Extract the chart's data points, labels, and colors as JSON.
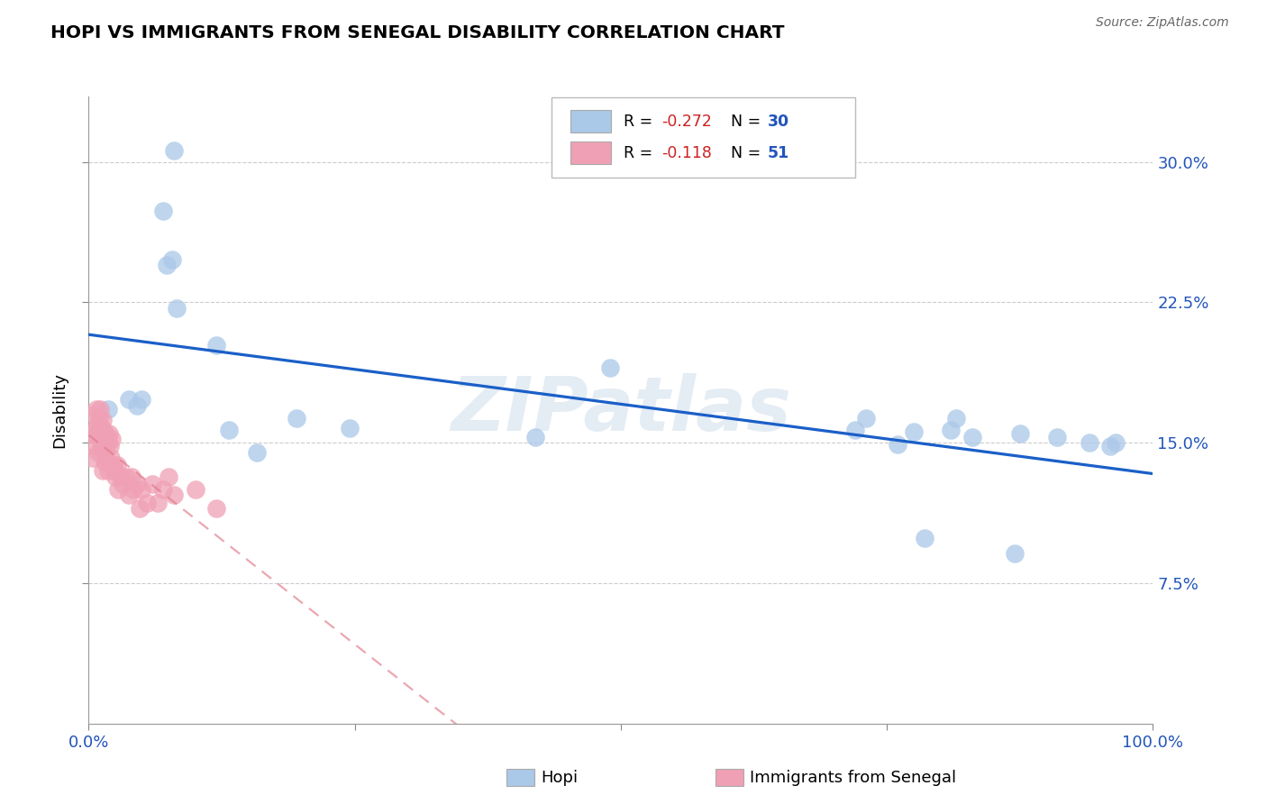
{
  "title": "HOPI VS IMMIGRANTS FROM SENEGAL DISABILITY CORRELATION CHART",
  "source": "Source: ZipAtlas.com",
  "ylabel": "Disability",
  "xlim": [
    0,
    1.0
  ],
  "ylim": [
    0,
    0.335
  ],
  "yticks": [
    0.075,
    0.15,
    0.225,
    0.3
  ],
  "ytick_labels": [
    "7.5%",
    "15.0%",
    "22.5%",
    "30.0%"
  ],
  "xticks": [
    0.0,
    0.25,
    0.5,
    0.75,
    1.0
  ],
  "xtick_labels": [
    "0.0%",
    "",
    "",
    "",
    "100.0%"
  ],
  "hopi_color": "#aac8e8",
  "senegal_color": "#f0a0b5",
  "trend_hopi_color": "#1a5fc8",
  "trend_senegal_color": "#e07888",
  "watermark": "ZIPatlas",
  "hopi_r": "-0.272",
  "hopi_n": "30",
  "senegal_r": "-0.118",
  "senegal_n": "51",
  "hopi_points_x": [
    0.018,
    0.038,
    0.045,
    0.05,
    0.07,
    0.073,
    0.078,
    0.08,
    0.083,
    0.12,
    0.132,
    0.158,
    0.195,
    0.245,
    0.42,
    0.49,
    0.72,
    0.73,
    0.76,
    0.775,
    0.785,
    0.81,
    0.815,
    0.83,
    0.87,
    0.875,
    0.91,
    0.94,
    0.96,
    0.965
  ],
  "hopi_points_y": [
    0.168,
    0.173,
    0.17,
    0.173,
    0.274,
    0.245,
    0.248,
    0.306,
    0.222,
    0.202,
    0.157,
    0.145,
    0.163,
    0.158,
    0.153,
    0.19,
    0.157,
    0.163,
    0.149,
    0.156,
    0.099,
    0.157,
    0.163,
    0.153,
    0.091,
    0.155,
    0.153,
    0.15,
    0.148,
    0.15
  ],
  "senegal_points_x": [
    0.004,
    0.005,
    0.005,
    0.006,
    0.007,
    0.007,
    0.008,
    0.009,
    0.009,
    0.01,
    0.01,
    0.011,
    0.011,
    0.012,
    0.012,
    0.013,
    0.013,
    0.014,
    0.015,
    0.015,
    0.016,
    0.016,
    0.017,
    0.018,
    0.018,
    0.019,
    0.02,
    0.021,
    0.022,
    0.023,
    0.024,
    0.025,
    0.027,
    0.028,
    0.03,
    0.032,
    0.035,
    0.038,
    0.04,
    0.042,
    0.045,
    0.048,
    0.05,
    0.055,
    0.06,
    0.065,
    0.07,
    0.075,
    0.08,
    0.1,
    0.12
  ],
  "senegal_points_y": [
    0.142,
    0.165,
    0.155,
    0.148,
    0.168,
    0.158,
    0.155,
    0.16,
    0.145,
    0.163,
    0.152,
    0.168,
    0.158,
    0.158,
    0.148,
    0.162,
    0.135,
    0.148,
    0.155,
    0.14,
    0.155,
    0.142,
    0.148,
    0.152,
    0.135,
    0.155,
    0.148,
    0.142,
    0.152,
    0.138,
    0.135,
    0.132,
    0.138,
    0.125,
    0.132,
    0.128,
    0.132,
    0.122,
    0.132,
    0.125,
    0.128,
    0.115,
    0.125,
    0.118,
    0.128,
    0.118,
    0.125,
    0.132,
    0.122,
    0.125,
    0.115
  ]
}
